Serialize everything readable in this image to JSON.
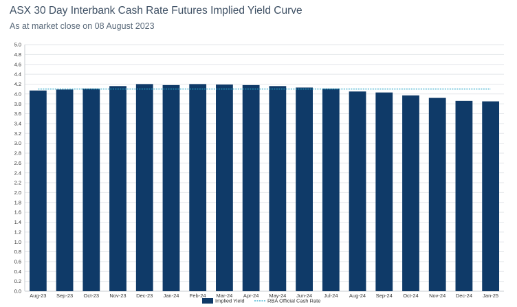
{
  "chart_data": {
    "type": "bar",
    "title": "ASX 30 Day Interbank Cash Rate Futures Implied Yield Curve",
    "subtitle": "As at market close on 08 August 2023",
    "categories": [
      "Aug-23",
      "Sep-23",
      "Oct-23",
      "Nov-23",
      "Dec-23",
      "Jan-24",
      "Feb-24",
      "Mar-24",
      "Apr-24",
      "May-24",
      "Jun-24",
      "Jul-24",
      "Aug-24",
      "Sep-24",
      "Oct-24",
      "Nov-24",
      "Dec-24",
      "Jan-25"
    ],
    "series": [
      {
        "name": "Implied Yield",
        "type": "bar",
        "color": "#0f3a68",
        "values": [
          4.07,
          4.09,
          4.11,
          4.16,
          4.2,
          4.18,
          4.2,
          4.19,
          4.18,
          4.16,
          4.13,
          4.11,
          4.05,
          4.03,
          3.97,
          3.92,
          3.86,
          3.85
        ]
      },
      {
        "name": "RBA Official Cash Rate",
        "type": "line",
        "style": "dashed",
        "color": "#2aa7c9",
        "value": 4.1
      }
    ],
    "ylim": [
      0,
      5.0
    ],
    "ytick_step": 0.2,
    "grid": true,
    "legend": "bottom-center"
  }
}
